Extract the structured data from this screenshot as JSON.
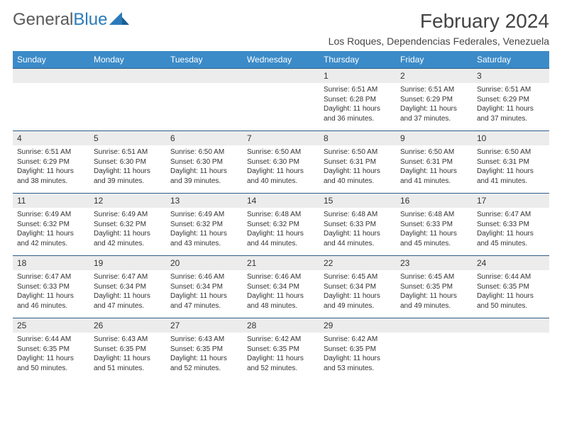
{
  "brand": {
    "part1": "General",
    "part2": "Blue"
  },
  "title": {
    "month": "February 2024",
    "location": "Los Roques, Dependencias Federales, Venezuela"
  },
  "colors": {
    "header_bg": "#3b8bc9",
    "header_text": "#ffffff",
    "daynum_bg": "#ececec",
    "row_border": "#2f5d88",
    "brand_gray": "#5a5a5a",
    "brand_blue": "#2a7ab9",
    "text": "#333333"
  },
  "daynames": [
    "Sunday",
    "Monday",
    "Tuesday",
    "Wednesday",
    "Thursday",
    "Friday",
    "Saturday"
  ],
  "first_weekday": 4,
  "days_in_month": 29,
  "labels": {
    "sunrise": "Sunrise:",
    "sunset": "Sunset:",
    "daylight": "Daylight:"
  },
  "days": {
    "1": {
      "sunrise": "6:51 AM",
      "sunset": "6:28 PM",
      "daylight": "11 hours and 36 minutes."
    },
    "2": {
      "sunrise": "6:51 AM",
      "sunset": "6:29 PM",
      "daylight": "11 hours and 37 minutes."
    },
    "3": {
      "sunrise": "6:51 AM",
      "sunset": "6:29 PM",
      "daylight": "11 hours and 37 minutes."
    },
    "4": {
      "sunrise": "6:51 AM",
      "sunset": "6:29 PM",
      "daylight": "11 hours and 38 minutes."
    },
    "5": {
      "sunrise": "6:51 AM",
      "sunset": "6:30 PM",
      "daylight": "11 hours and 39 minutes."
    },
    "6": {
      "sunrise": "6:50 AM",
      "sunset": "6:30 PM",
      "daylight": "11 hours and 39 minutes."
    },
    "7": {
      "sunrise": "6:50 AM",
      "sunset": "6:30 PM",
      "daylight": "11 hours and 40 minutes."
    },
    "8": {
      "sunrise": "6:50 AM",
      "sunset": "6:31 PM",
      "daylight": "11 hours and 40 minutes."
    },
    "9": {
      "sunrise": "6:50 AM",
      "sunset": "6:31 PM",
      "daylight": "11 hours and 41 minutes."
    },
    "10": {
      "sunrise": "6:50 AM",
      "sunset": "6:31 PM",
      "daylight": "11 hours and 41 minutes."
    },
    "11": {
      "sunrise": "6:49 AM",
      "sunset": "6:32 PM",
      "daylight": "11 hours and 42 minutes."
    },
    "12": {
      "sunrise": "6:49 AM",
      "sunset": "6:32 PM",
      "daylight": "11 hours and 42 minutes."
    },
    "13": {
      "sunrise": "6:49 AM",
      "sunset": "6:32 PM",
      "daylight": "11 hours and 43 minutes."
    },
    "14": {
      "sunrise": "6:48 AM",
      "sunset": "6:32 PM",
      "daylight": "11 hours and 44 minutes."
    },
    "15": {
      "sunrise": "6:48 AM",
      "sunset": "6:33 PM",
      "daylight": "11 hours and 44 minutes."
    },
    "16": {
      "sunrise": "6:48 AM",
      "sunset": "6:33 PM",
      "daylight": "11 hours and 45 minutes."
    },
    "17": {
      "sunrise": "6:47 AM",
      "sunset": "6:33 PM",
      "daylight": "11 hours and 45 minutes."
    },
    "18": {
      "sunrise": "6:47 AM",
      "sunset": "6:33 PM",
      "daylight": "11 hours and 46 minutes."
    },
    "19": {
      "sunrise": "6:47 AM",
      "sunset": "6:34 PM",
      "daylight": "11 hours and 47 minutes."
    },
    "20": {
      "sunrise": "6:46 AM",
      "sunset": "6:34 PM",
      "daylight": "11 hours and 47 minutes."
    },
    "21": {
      "sunrise": "6:46 AM",
      "sunset": "6:34 PM",
      "daylight": "11 hours and 48 minutes."
    },
    "22": {
      "sunrise": "6:45 AM",
      "sunset": "6:34 PM",
      "daylight": "11 hours and 49 minutes."
    },
    "23": {
      "sunrise": "6:45 AM",
      "sunset": "6:35 PM",
      "daylight": "11 hours and 49 minutes."
    },
    "24": {
      "sunrise": "6:44 AM",
      "sunset": "6:35 PM",
      "daylight": "11 hours and 50 minutes."
    },
    "25": {
      "sunrise": "6:44 AM",
      "sunset": "6:35 PM",
      "daylight": "11 hours and 50 minutes."
    },
    "26": {
      "sunrise": "6:43 AM",
      "sunset": "6:35 PM",
      "daylight": "11 hours and 51 minutes."
    },
    "27": {
      "sunrise": "6:43 AM",
      "sunset": "6:35 PM",
      "daylight": "11 hours and 52 minutes."
    },
    "28": {
      "sunrise": "6:42 AM",
      "sunset": "6:35 PM",
      "daylight": "11 hours and 52 minutes."
    },
    "29": {
      "sunrise": "6:42 AM",
      "sunset": "6:35 PM",
      "daylight": "11 hours and 53 minutes."
    }
  }
}
